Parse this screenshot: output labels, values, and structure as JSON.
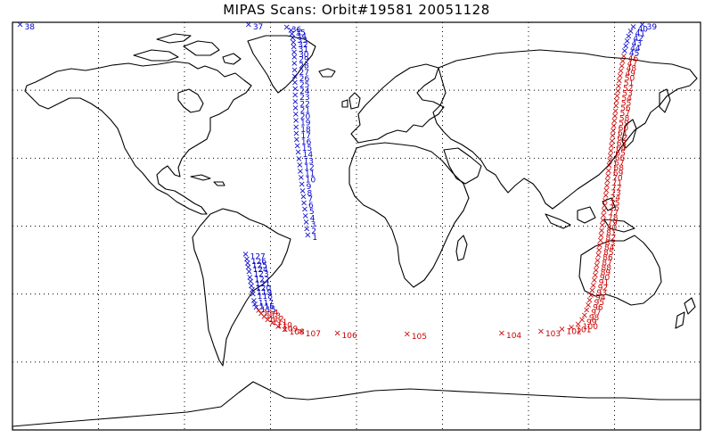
{
  "title": "MIPAS Scans: Orbit#19581 20051128",
  "colors": {
    "north": "#0000cc",
    "south": "#cc0000",
    "coast": "#000000"
  },
  "map": {
    "projection": "equirectangular",
    "lon_range": [
      -180,
      180
    ],
    "lat_range": [
      -90,
      90
    ],
    "graticule_lon_step": 45,
    "graticule_lat_step": 30,
    "grid": true
  },
  "scans": [
    {
      "id": "1",
      "lon": -25.5,
      "lat": -3.8,
      "c": "n"
    },
    {
      "id": "2",
      "lon": -26.0,
      "lat": -1.0,
      "c": "n"
    },
    {
      "id": "3",
      "lon": -26.3,
      "lat": 1.9,
      "c": "n"
    },
    {
      "id": "4",
      "lon": -26.7,
      "lat": 4.8,
      "c": "n"
    },
    {
      "id": "5",
      "lon": -27.1,
      "lat": 7.7,
      "c": "n"
    },
    {
      "id": "6",
      "lon": -27.5,
      "lat": 10.4,
      "c": "n"
    },
    {
      "id": "7",
      "lon": -27.8,
      "lat": 13.1,
      "c": "n"
    },
    {
      "id": "8",
      "lon": -28.2,
      "lat": 15.8,
      "c": "n"
    },
    {
      "id": "9",
      "lon": -28.6,
      "lat": 18.8,
      "c": "n"
    },
    {
      "id": "10",
      "lon": -29.0,
      "lat": 21.6,
      "c": "n"
    },
    {
      "id": "11",
      "lon": -29.4,
      "lat": 24.4,
      "c": "n"
    },
    {
      "id": "12",
      "lon": -29.7,
      "lat": 27.2,
      "c": "n"
    },
    {
      "id": "13",
      "lon": -30.1,
      "lat": 30.0,
      "c": "n"
    },
    {
      "id": "14",
      "lon": -30.5,
      "lat": 32.8,
      "c": "n"
    },
    {
      "id": "15",
      "lon": -30.9,
      "lat": 35.6,
      "c": "n"
    },
    {
      "id": "16",
      "lon": -31.3,
      "lat": 38.4,
      "c": "n"
    },
    {
      "id": "17",
      "lon": -31.5,
      "lat": 41.2,
      "c": "n"
    },
    {
      "id": "18",
      "lon": -31.6,
      "lat": 44.0,
      "c": "n"
    },
    {
      "id": "19",
      "lon": -31.7,
      "lat": 46.8,
      "c": "n"
    },
    {
      "id": "20",
      "lon": -31.8,
      "lat": 49.6,
      "c": "n"
    },
    {
      "id": "21",
      "lon": -31.9,
      "lat": 52.4,
      "c": "n"
    },
    {
      "id": "22",
      "lon": -32.0,
      "lat": 55.2,
      "c": "n"
    },
    {
      "id": "23",
      "lon": -32.1,
      "lat": 58.0,
      "c": "n"
    },
    {
      "id": "24",
      "lon": -32.1,
      "lat": 60.8,
      "c": "n"
    },
    {
      "id": "25",
      "lon": -32.2,
      "lat": 63.6,
      "c": "n"
    },
    {
      "id": "26",
      "lon": -32.3,
      "lat": 66.4,
      "c": "n"
    },
    {
      "id": "27",
      "lon": -32.4,
      "lat": 69.2,
      "c": "n"
    },
    {
      "id": "28",
      "lon": -32.5,
      "lat": 72.0,
      "c": "n"
    },
    {
      "id": "29",
      "lon": -32.5,
      "lat": 74.8,
      "c": "n"
    },
    {
      "id": "30",
      "lon": -32.6,
      "lat": 77.0,
      "c": "n"
    },
    {
      "id": "31",
      "lon": -32.8,
      "lat": 79.4,
      "c": "n"
    },
    {
      "id": "32",
      "lon": -33.0,
      "lat": 81.4,
      "c": "n"
    },
    {
      "id": "33",
      "lon": -33.4,
      "lat": 83.4,
      "c": "n"
    },
    {
      "id": "34",
      "lon": -33.8,
      "lat": 85.0,
      "c": "n"
    },
    {
      "id": "35",
      "lon": -34.3,
      "lat": 86.6,
      "c": "n"
    },
    {
      "id": "36",
      "lon": -36.5,
      "lat": 88.0,
      "c": "n"
    },
    {
      "id": "37",
      "lon": -56.5,
      "lat": 90.5,
      "c": "n"
    },
    {
      "id": "38",
      "lon": -176.0,
      "lat": 92.5,
      "c": "n"
    },
    {
      "id": "39",
      "lon": 149.5,
      "lat": 90.5,
      "c": "n"
    },
    {
      "id": "40",
      "lon": 144.8,
      "lat": 88.3,
      "c": "n"
    },
    {
      "id": "41",
      "lon": 143.4,
      "lat": 86.3,
      "c": "n"
    },
    {
      "id": "42",
      "lon": 142.4,
      "lat": 84.1,
      "c": "n"
    },
    {
      "id": "43",
      "lon": 141.6,
      "lat": 81.9,
      "c": "n"
    },
    {
      "id": "44",
      "lon": 140.9,
      "lat": 79.7,
      "c": "n"
    },
    {
      "id": "45",
      "lon": 140.3,
      "lat": 77.5,
      "c": "n"
    },
    {
      "id": "46",
      "lon": 139.8,
      "lat": 75.3,
      "c": "s"
    },
    {
      "id": "47",
      "lon": 139.3,
      "lat": 73.1,
      "c": "s"
    },
    {
      "id": "48",
      "lon": 138.8,
      "lat": 70.9,
      "c": "s"
    },
    {
      "id": "49",
      "lon": 138.3,
      "lat": 68.7,
      "c": "s"
    },
    {
      "id": "50",
      "lon": 137.9,
      "lat": 66.5,
      "c": "s"
    },
    {
      "id": "51",
      "lon": 137.5,
      "lat": 64.3,
      "c": "s"
    },
    {
      "id": "52",
      "lon": 137.1,
      "lat": 62.1,
      "c": "s"
    },
    {
      "id": "53",
      "lon": 136.8,
      "lat": 59.9,
      "c": "s"
    },
    {
      "id": "54",
      "lon": 136.4,
      "lat": 57.7,
      "c": "s"
    },
    {
      "id": "55",
      "lon": 136.1,
      "lat": 55.5,
      "c": "s"
    },
    {
      "id": "56",
      "lon": 135.8,
      "lat": 53.3,
      "c": "s"
    },
    {
      "id": "57",
      "lon": 135.5,
      "lat": 51.1,
      "c": "s"
    },
    {
      "id": "58",
      "lon": 135.2,
      "lat": 48.9,
      "c": "s"
    },
    {
      "id": "59",
      "lon": 134.9,
      "lat": 46.7,
      "c": "s"
    },
    {
      "id": "60",
      "lon": 134.6,
      "lat": 44.5,
      "c": "s"
    },
    {
      "id": "61",
      "lon": 134.3,
      "lat": 42.3,
      "c": "s"
    },
    {
      "id": "62",
      "lon": 134.0,
      "lat": 40.1,
      "c": "s"
    },
    {
      "id": "63",
      "lon": 133.7,
      "lat": 37.9,
      "c": "s"
    },
    {
      "id": "64",
      "lon": 133.4,
      "lat": 35.7,
      "c": "s"
    },
    {
      "id": "65",
      "lon": 133.1,
      "lat": 33.5,
      "c": "s"
    },
    {
      "id": "66",
      "lon": 132.8,
      "lat": 31.3,
      "c": "s"
    },
    {
      "id": "67",
      "lon": 132.5,
      "lat": 29.1,
      "c": "s"
    },
    {
      "id": "68",
      "lon": 132.2,
      "lat": 26.9,
      "c": "s"
    },
    {
      "id": "69",
      "lon": 131.9,
      "lat": 24.7,
      "c": "s"
    },
    {
      "id": "70",
      "lon": 131.6,
      "lat": 22.5,
      "c": "s"
    },
    {
      "id": "71",
      "lon": 131.3,
      "lat": 20.3,
      "c": "s"
    },
    {
      "id": "72",
      "lon": 131.0,
      "lat": 18.1,
      "c": "s"
    },
    {
      "id": "73",
      "lon": 130.7,
      "lat": 15.9,
      "c": "s"
    },
    {
      "id": "74",
      "lon": 130.4,
      "lat": 13.7,
      "c": "s"
    },
    {
      "id": "75",
      "lon": 130.1,
      "lat": 11.5,
      "c": "s"
    },
    {
      "id": "76",
      "lon": 129.8,
      "lat": 9.3,
      "c": "s"
    },
    {
      "id": "77",
      "lon": 129.5,
      "lat": 7.1,
      "c": "s"
    },
    {
      "id": "78",
      "lon": 129.2,
      "lat": 4.9,
      "c": "s"
    },
    {
      "id": "79",
      "lon": 128.9,
      "lat": 2.7,
      "c": "s"
    },
    {
      "id": "80",
      "lon": 128.6,
      "lat": 0.5,
      "c": "s"
    },
    {
      "id": "81",
      "lon": 128.3,
      "lat": -1.7,
      "c": "s"
    },
    {
      "id": "82",
      "lon": 128.0,
      "lat": -3.9,
      "c": "s"
    },
    {
      "id": "83",
      "lon": 127.7,
      "lat": -6.1,
      "c": "s"
    },
    {
      "id": "84",
      "lon": 127.3,
      "lat": -8.3,
      "c": "s"
    },
    {
      "id": "85",
      "lon": 126.9,
      "lat": -10.5,
      "c": "s"
    },
    {
      "id": "86",
      "lon": 126.5,
      "lat": -12.7,
      "c": "s"
    },
    {
      "id": "87",
      "lon": 126.1,
      "lat": -14.9,
      "c": "s"
    },
    {
      "id": "88",
      "lon": 125.7,
      "lat": -17.1,
      "c": "s"
    },
    {
      "id": "89",
      "lon": 125.3,
      "lat": -19.3,
      "c": "s"
    },
    {
      "id": "90",
      "lon": 124.9,
      "lat": -21.5,
      "c": "s"
    },
    {
      "id": "91",
      "lon": 124.4,
      "lat": -23.7,
      "c": "s"
    },
    {
      "id": "92",
      "lon": 123.9,
      "lat": -25.9,
      "c": "s"
    },
    {
      "id": "93",
      "lon": 123.3,
      "lat": -28.1,
      "c": "s"
    },
    {
      "id": "94",
      "lon": 122.7,
      "lat": -30.3,
      "c": "s"
    },
    {
      "id": "95",
      "lon": 122.0,
      "lat": -32.5,
      "c": "s"
    },
    {
      "id": "96",
      "lon": 121.3,
      "lat": -34.7,
      "c": "s"
    },
    {
      "id": "97",
      "lon": 120.4,
      "lat": -36.9,
      "c": "s"
    },
    {
      "id": "98",
      "lon": 119.3,
      "lat": -39.1,
      "c": "s"
    },
    {
      "id": "99",
      "lon": 118.0,
      "lat": -41.1,
      "c": "s"
    },
    {
      "id": "100",
      "lon": 116.0,
      "lat": -43.1,
      "c": "s"
    },
    {
      "id": "101",
      "lon": 112.5,
      "lat": -44.6,
      "c": "s"
    },
    {
      "id": "102",
      "lon": 107.5,
      "lat": -45.3,
      "c": "s"
    },
    {
      "id": "103",
      "lon": 96.5,
      "lat": -46.2,
      "c": "s"
    },
    {
      "id": "104",
      "lon": 76.0,
      "lat": -47.1,
      "c": "s"
    },
    {
      "id": "105",
      "lon": 26.5,
      "lat": -47.4,
      "c": "s"
    },
    {
      "id": "106",
      "lon": -10.0,
      "lat": -47.0,
      "c": "s"
    },
    {
      "id": "107",
      "lon": -29.0,
      "lat": -46.2,
      "c": "s"
    },
    {
      "id": "108",
      "lon": -37.5,
      "lat": -45.4,
      "c": "s"
    },
    {
      "id": "109",
      "lon": -41.0,
      "lat": -44.2,
      "c": "s"
    },
    {
      "id": "110",
      "lon": -44.0,
      "lat": -42.6,
      "c": "s"
    },
    {
      "id": "111",
      "lon": -46.5,
      "lat": -41.1,
      "c": "s"
    },
    {
      "id": "112",
      "lon": -48.3,
      "lat": -39.8,
      "c": "s"
    },
    {
      "id": "113",
      "lon": -49.9,
      "lat": -38.4,
      "c": "s"
    },
    {
      "id": "114",
      "lon": -51.2,
      "lat": -37.1,
      "c": "s"
    },
    {
      "id": "115",
      "lon": -52.5,
      "lat": -35.7,
      "c": "n"
    },
    {
      "id": "116",
      "lon": -53.2,
      "lat": -34.2,
      "c": "n"
    },
    {
      "id": "117",
      "lon": -53.7,
      "lat": -32.7,
      "c": "n"
    },
    {
      "id": "118",
      "lon": -54.2,
      "lat": -29.7,
      "c": "n"
    },
    {
      "id": "119",
      "lon": -54.6,
      "lat": -27.9,
      "c": "n"
    },
    {
      "id": "120",
      "lon": -55.0,
      "lat": -26.1,
      "c": "n"
    },
    {
      "id": "121",
      "lon": -55.4,
      "lat": -24.3,
      "c": "n"
    },
    {
      "id": "122",
      "lon": -55.8,
      "lat": -22.5,
      "c": "n"
    },
    {
      "id": "123",
      "lon": -56.2,
      "lat": -19.8,
      "c": "n"
    },
    {
      "id": "124",
      "lon": -56.6,
      "lat": -18.0,
      "c": "n"
    },
    {
      "id": "125",
      "lon": -57.0,
      "lat": -16.2,
      "c": "n"
    },
    {
      "id": "126",
      "lon": -57.4,
      "lat": -14.4,
      "c": "n"
    },
    {
      "id": "127",
      "lon": -58.0,
      "lat": -12.3,
      "c": "n"
    }
  ]
}
